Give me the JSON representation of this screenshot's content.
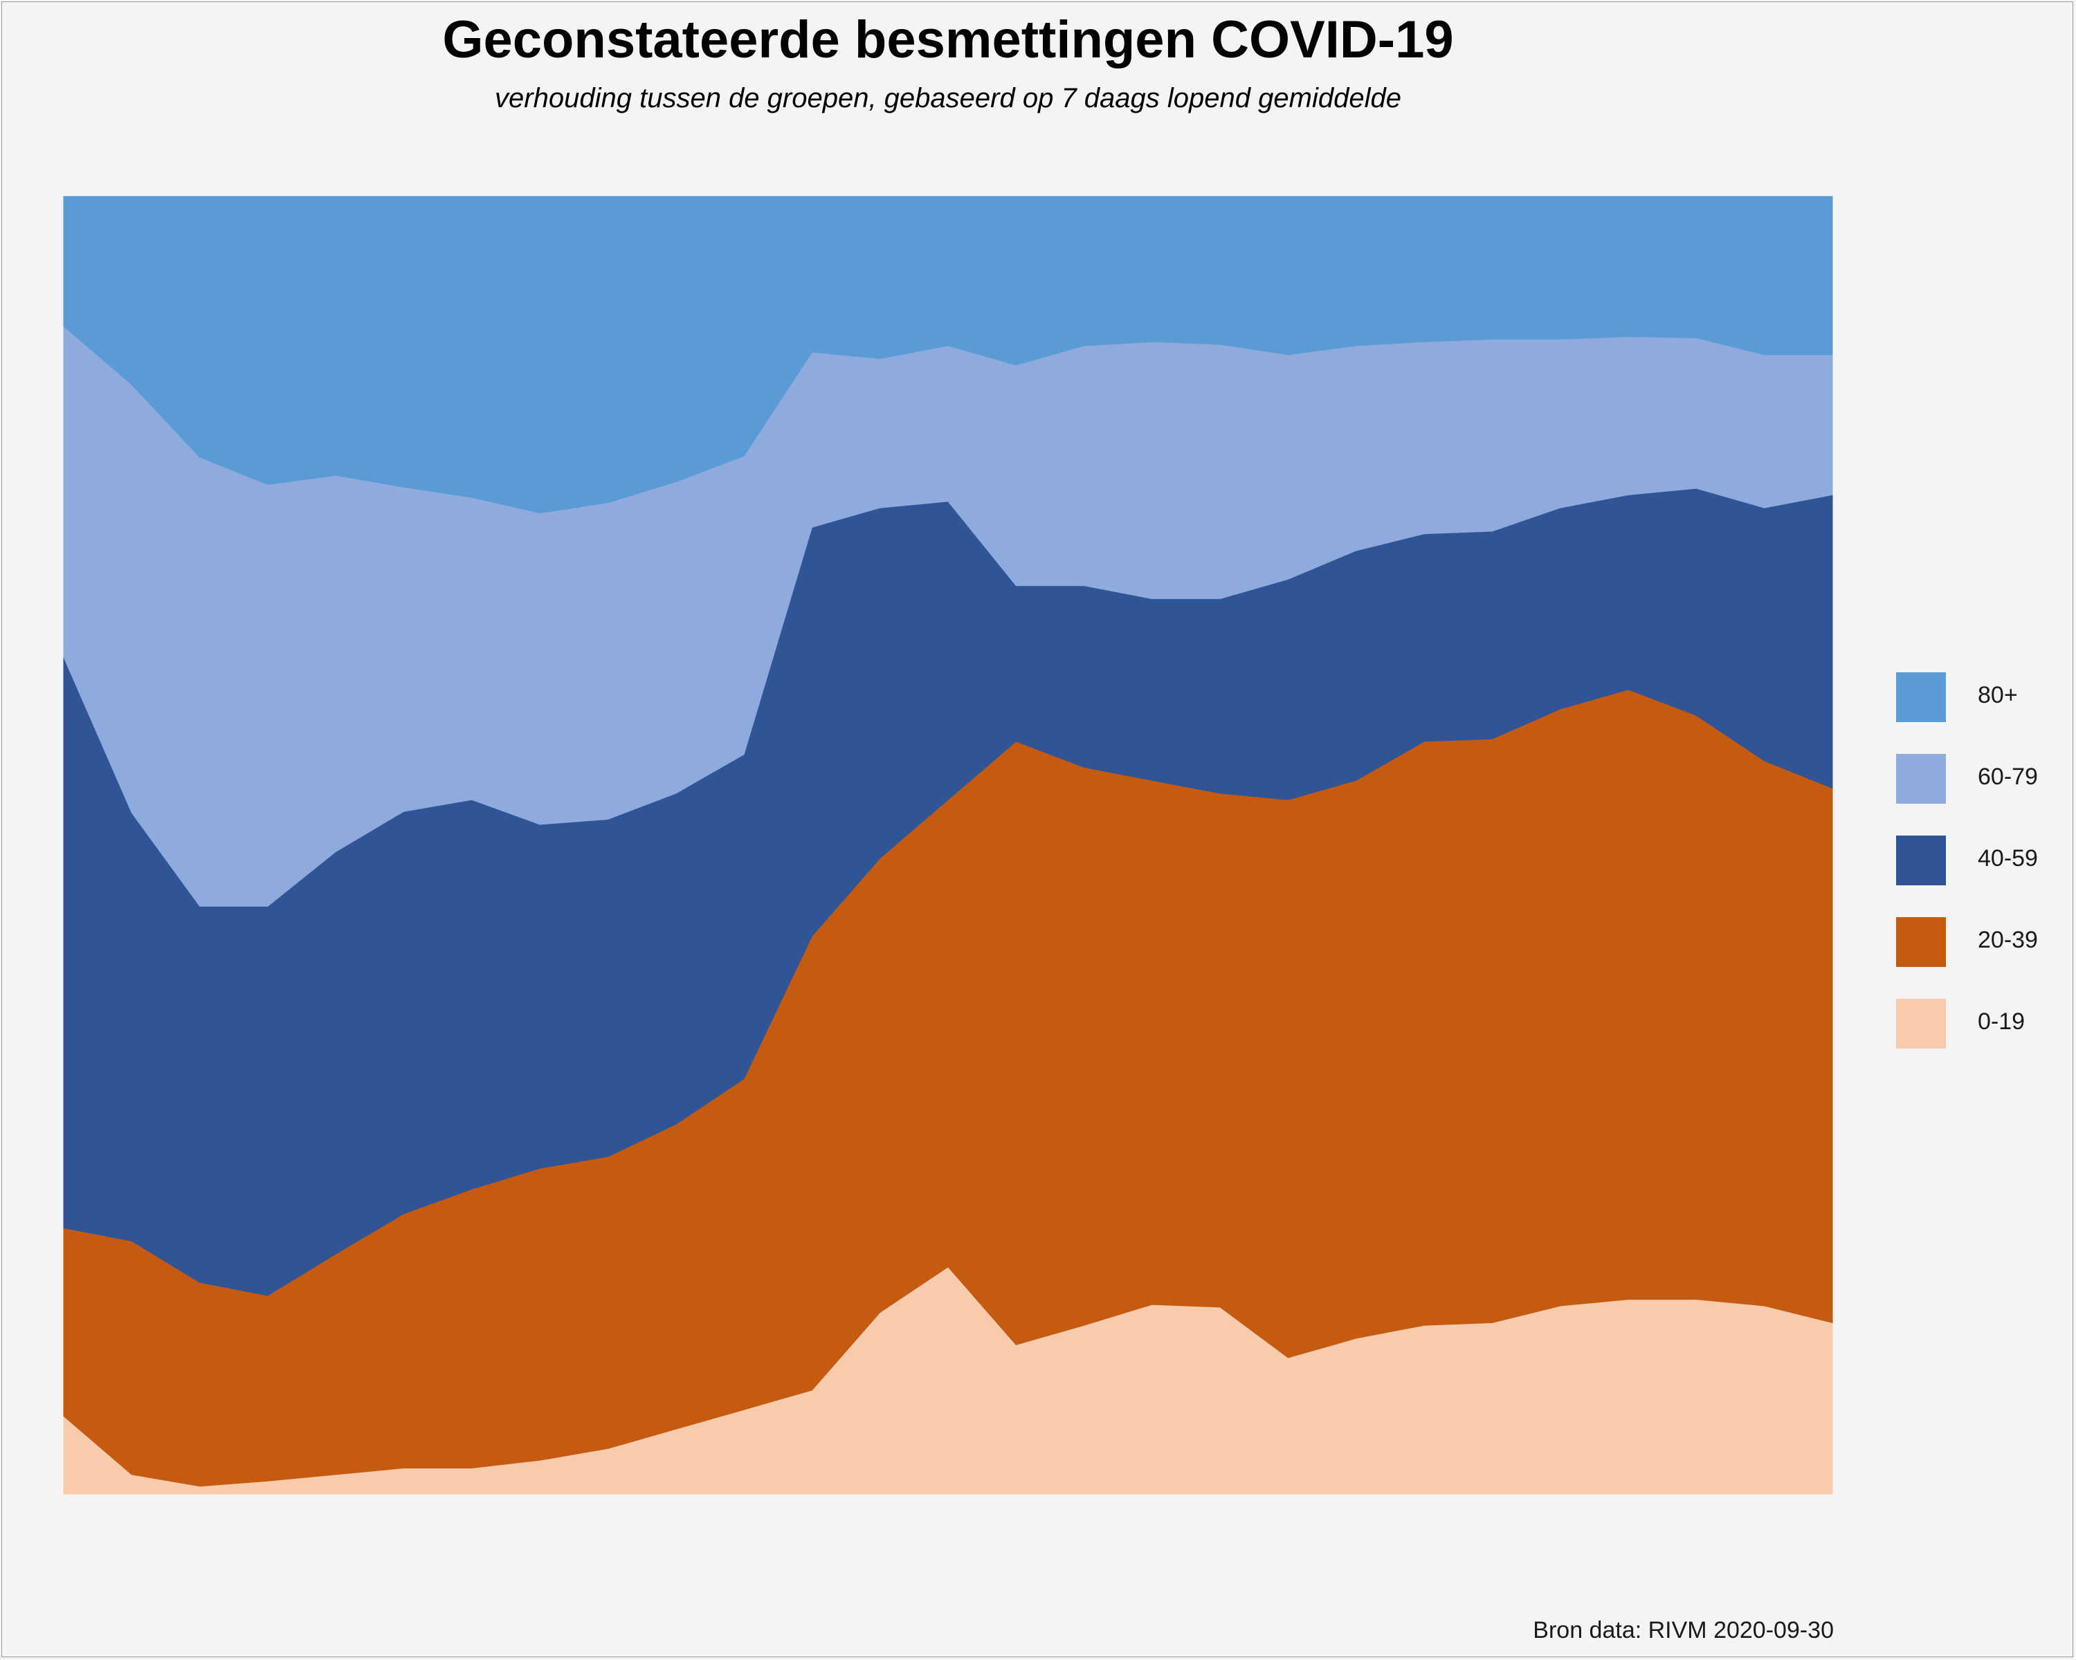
{
  "title": "Geconstateerde besmettingen COVID-19",
  "subtitle": "verhouding tussen de groepen, gebaseerd op 7 daags lopend gemiddelde",
  "caption": "Bron data: RIVM  2020-09-30",
  "chart_data": {
    "type": "area",
    "stacked": true,
    "normalized": true,
    "ylim": [
      0,
      1
    ],
    "grid": false,
    "legend_position": "right",
    "x_unit": "day index",
    "x": [
      0,
      10,
      20,
      30,
      40,
      50,
      60,
      70,
      80,
      90,
      100,
      110,
      120,
      130,
      140,
      150,
      160,
      170,
      180,
      190,
      200,
      210,
      220,
      230,
      240,
      250,
      260
    ],
    "series": [
      {
        "name": "0-19",
        "color": "#F8CBAD",
        "values": [
          0.06,
          0.015,
          0.006,
          0.01,
          0.015,
          0.02,
          0.02,
          0.026,
          0.035,
          0.05,
          0.065,
          0.08,
          0.14,
          0.175,
          0.115,
          0.13,
          0.146,
          0.144,
          0.105,
          0.12,
          0.13,
          0.132,
          0.145,
          0.15,
          0.15,
          0.145,
          0.132
        ]
      },
      {
        "name": "20-39",
        "color": "#C55A11",
        "values": [
          0.145,
          0.18,
          0.157,
          0.143,
          0.17,
          0.196,
          0.215,
          0.225,
          0.225,
          0.235,
          0.255,
          0.35,
          0.35,
          0.36,
          0.465,
          0.43,
          0.404,
          0.396,
          0.43,
          0.43,
          0.45,
          0.45,
          0.46,
          0.47,
          0.45,
          0.42,
          0.412
        ]
      },
      {
        "name": "40-59",
        "color": "#2F5597",
        "values": [
          0.44,
          0.33,
          0.29,
          0.3,
          0.31,
          0.31,
          0.3,
          0.265,
          0.26,
          0.255,
          0.25,
          0.315,
          0.27,
          0.23,
          0.12,
          0.14,
          0.14,
          0.15,
          0.17,
          0.177,
          0.16,
          0.16,
          0.155,
          0.15,
          0.175,
          0.195,
          0.226
        ]
      },
      {
        "name": "60-79",
        "color": "#8FAADC",
        "values": [
          0.255,
          0.33,
          0.346,
          0.325,
          0.29,
          0.25,
          0.233,
          0.24,
          0.244,
          0.24,
          0.23,
          0.135,
          0.115,
          0.12,
          0.17,
          0.185,
          0.198,
          0.196,
          0.173,
          0.158,
          0.148,
          0.148,
          0.13,
          0.122,
          0.116,
          0.118,
          0.108
        ]
      },
      {
        "name": "80+",
        "color": "#5B9BD5",
        "values": [
          0.1,
          0.145,
          0.201,
          0.222,
          0.215,
          0.224,
          0.232,
          0.244,
          0.236,
          0.22,
          0.2,
          0.12,
          0.125,
          0.115,
          0.08,
          0.06,
          0.035,
          0.028,
          0.02,
          0.02,
          0.012,
          0.01,
          0.01,
          0.008,
          0.009,
          0.022,
          0.037
        ]
      }
    ]
  }
}
